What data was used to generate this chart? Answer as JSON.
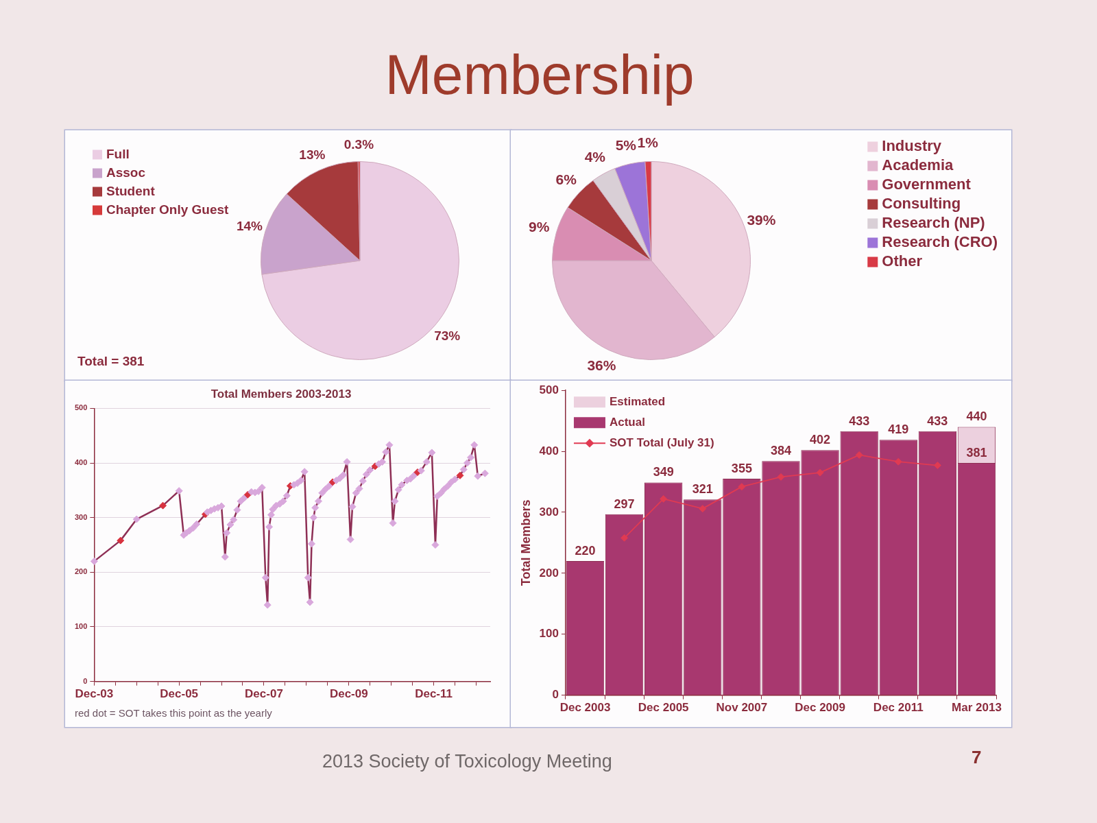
{
  "chart_data": [
    {
      "type": "pie",
      "title": "Membership",
      "categories": [
        "Full",
        "Assoc",
        "Student",
        "Chapter Only Guest"
      ],
      "values": [
        73,
        14,
        13,
        0.3
      ],
      "colors": [
        "#ebcde3",
        "#c9a3cc",
        "#a63a3c",
        "#d63a3a"
      ],
      "value_labels": [
        "73%",
        "14%",
        "13%",
        "0.3%"
      ],
      "legend": "top left",
      "annotations": [
        "Total = 381"
      ]
    },
    {
      "type": "pie",
      "categories": [
        "Industry",
        "Academia",
        "Government",
        "Consulting",
        "Research (NP)",
        "Research (CRO)",
        "Other"
      ],
      "values": [
        39,
        36,
        9,
        6,
        4,
        5,
        1
      ],
      "colors": [
        "#eed0de",
        "#e2b6cf",
        "#d98db2",
        "#a63a3c",
        "#d9cfd6",
        "#9c74d8",
        "#d83a46"
      ],
      "value_labels": [
        "39%",
        "36%",
        "9%",
        "6%",
        "4%",
        "5%",
        "1%"
      ],
      "legend": "top right"
    },
    {
      "type": "line",
      "title": "Total Members 2003-2013",
      "x": [
        "2003-12",
        "2004-07-15",
        "2004-12",
        "2005-07-15",
        "2005-12",
        "2006-01-10",
        "2006-02",
        "2006-03",
        "2006-04",
        "2006-05",
        "2006-07-15",
        "2006-08",
        "2006-09",
        "2006-10",
        "2006-11",
        "2006-12",
        "2007-01",
        "2007-01-15",
        "2007-02-15",
        "2007-03-15",
        "2007-04-15",
        "2007-05-15",
        "2007-06-15",
        "2007-07-15",
        "2007-08-15",
        "2007-09-15",
        "2007-10-15",
        "2007-11-15",
        "2007-12-15",
        "2008-01",
        "2008-01-15",
        "2008-02",
        "2008-02-15",
        "2008-03-15",
        "2008-04-15",
        "2008-05-15",
        "2008-06-15",
        "2008-07-15",
        "2008-08-15",
        "2008-09-15",
        "2008-10-15",
        "2008-11-15",
        "2008-12-15",
        "2009-01",
        "2009-01-15",
        "2009-02",
        "2009-02-15",
        "2009-03-15",
        "2009-04-15",
        "2009-05-15",
        "2009-06-15",
        "2009-07-15",
        "2009-08-15",
        "2009-09-15",
        "2009-10-15",
        "2009-11-15",
        "2009-12-15",
        "2010-01",
        "2010-02",
        "2010-03",
        "2010-04",
        "2010-05",
        "2010-06",
        "2010-07-15",
        "2010-08-15",
        "2010-09-15",
        "2010-10-15",
        "2010-11-15",
        "2010-12-15",
        "2011-01",
        "2011-02",
        "2011-03",
        "2011-04-15",
        "2011-05-15",
        "2011-06-15",
        "2011-07-15",
        "2011-08-15",
        "2011-10",
        "2011-11-15",
        "2011-12-15",
        "2012-01",
        "2012-02",
        "2012-03",
        "2012-04",
        "2012-05",
        "2012-06",
        "2012-07-15",
        "2012-08-15",
        "2012-09-15",
        "2012-10-15",
        "2012-11-15",
        "2012-12-15",
        "2013-02-15"
      ],
      "values": [
        220,
        258,
        297,
        322,
        349,
        268,
        272,
        276,
        281,
        288,
        306,
        310,
        313,
        316,
        318,
        321,
        228,
        272,
        287,
        296,
        314,
        330,
        336,
        342,
        347,
        346,
        348,
        355,
        190,
        140,
        283,
        305,
        315,
        322,
        325,
        330,
        340,
        358,
        360,
        363,
        368,
        384,
        190,
        145,
        252,
        300,
        318,
        330,
        345,
        352,
        358,
        365,
        368,
        372,
        378,
        402,
        260,
        320,
        345,
        353,
        367,
        379,
        387,
        394,
        398,
        402,
        420,
        433,
        290,
        330,
        351,
        360,
        368,
        371,
        377,
        383,
        386,
        402,
        419,
        250,
        339,
        345,
        352,
        358,
        365,
        370,
        377,
        388,
        400,
        410,
        433,
        376,
        381
      ],
      "color": "#8e2f55",
      "colors": [
        "#d9a8dc",
        "#d8323f",
        "#d9a8dc",
        "#d8323f",
        "#d9a8dc",
        "#d9a8dc",
        "#d9a8dc",
        "#d9a8dc",
        "#d9a8dc",
        "#d9a8dc",
        "#d8323f",
        "#d9a8dc",
        "#d9a8dc",
        "#d9a8dc",
        "#d9a8dc",
        "#d9a8dc",
        "#d9a8dc",
        "#d9a8dc",
        "#d9a8dc",
        "#d9a8dc",
        "#d9a8dc",
        "#d9a8dc",
        "#d9a8dc",
        "#d8323f",
        "#d9a8dc",
        "#d9a8dc",
        "#d9a8dc",
        "#d9a8dc",
        "#d9a8dc",
        "#d9a8dc",
        "#d9a8dc",
        "#d9a8dc",
        "#d9a8dc",
        "#d9a8dc",
        "#d9a8dc",
        "#d9a8dc",
        "#d9a8dc",
        "#d8323f",
        "#d9a8dc",
        "#d9a8dc",
        "#d9a8dc",
        "#d9a8dc",
        "#d9a8dc",
        "#d9a8dc",
        "#d9a8dc",
        "#d9a8dc",
        "#d9a8dc",
        "#d9a8dc",
        "#d9a8dc",
        "#d9a8dc",
        "#d9a8dc",
        "#d8323f",
        "#d9a8dc",
        "#d9a8dc",
        "#d9a8dc",
        "#d9a8dc",
        "#d9a8dc",
        "#d9a8dc",
        "#d9a8dc",
        "#d9a8dc",
        "#d9a8dc",
        "#d9a8dc",
        "#d9a8dc",
        "#d8323f",
        "#d9a8dc",
        "#d9a8dc",
        "#d9a8dc",
        "#d9a8dc",
        "#d9a8dc",
        "#d9a8dc",
        "#d9a8dc",
        "#d9a8dc",
        "#d9a8dc",
        "#d9a8dc",
        "#d9a8dc",
        "#d8323f",
        "#d9a8dc",
        "#d9a8dc",
        "#d9a8dc",
        "#d9a8dc",
        "#d9a8dc",
        "#d9a8dc",
        "#d9a8dc",
        "#d9a8dc",
        "#d9a8dc",
        "#d9a8dc",
        "#d8323f",
        "#d9a8dc",
        "#d9a8dc",
        "#d9a8dc",
        "#d9a8dc",
        "#d9a8dc",
        "#d9a8dc"
      ],
      "marker": "diamond",
      "xlim": [
        "2003-12",
        "2013-04"
      ],
      "xticks": [
        {
          "value": "2003-12",
          "label": "Dec-03"
        },
        {
          "value": "2004-06",
          "label": null
        },
        {
          "value": "2004-12",
          "label": null
        },
        {
          "value": "2005-06",
          "label": null
        },
        {
          "value": "2005-12",
          "label": "Dec-05"
        },
        {
          "value": "2006-06",
          "label": null
        },
        {
          "value": "2006-12",
          "label": null
        },
        {
          "value": "2007-06",
          "label": null
        },
        {
          "value": "2007-12",
          "label": "Dec-07"
        },
        {
          "value": "2008-06",
          "label": null
        },
        {
          "value": "2008-12",
          "label": null
        },
        {
          "value": "2009-06",
          "label": null
        },
        {
          "value": "2009-12",
          "label": "Dec-09"
        },
        {
          "value": "2010-06",
          "label": null
        },
        {
          "value": "2010-12",
          "label": null
        },
        {
          "value": "2011-06",
          "label": null
        },
        {
          "value": "2011-12",
          "label": "Dec-11"
        },
        {
          "value": "2012-06",
          "label": null
        },
        {
          "value": "2012-12",
          "label": null
        }
      ],
      "ylim": [
        0,
        500
      ],
      "yticks": [
        0,
        100,
        200,
        300,
        400,
        500
      ],
      "grid": "y",
      "annotations": [
        "red dot = SOT takes this point as the yearly"
      ]
    },
    {
      "type": "bar",
      "stacked": true,
      "ylabel": "Total Members",
      "categories": [
        "Dec 2003",
        null,
        "Dec 2005",
        null,
        "Nov 2007",
        null,
        "Dec 2009",
        null,
        "Dec 2011",
        null,
        "Mar 2013"
      ],
      "series": [
        {
          "name": "Actual",
          "color": "#a8386f",
          "values": [
            220,
            297,
            349,
            321,
            355,
            384,
            402,
            433,
            419,
            433,
            381
          ],
          "value_labels": [
            "220",
            "297",
            "349",
            "321",
            "355",
            "384",
            "402",
            "433",
            "419",
            "433",
            "381"
          ]
        },
        {
          "name": "Estimated",
          "color": "#ecd0de",
          "values": [
            null,
            null,
            null,
            null,
            null,
            null,
            null,
            null,
            null,
            null,
            59
          ]
        },
        {
          "name": "SOT Total (July 31)",
          "type": "line",
          "color": "#e03a52",
          "marker": "diamond",
          "values": [
            null,
            258,
            322,
            306,
            342,
            358,
            365,
            394,
            383,
            377,
            null
          ]
        }
      ],
      "totals": [
        null,
        null,
        null,
        null,
        null,
        null,
        null,
        null,
        null,
        null,
        "440"
      ],
      "ylim": [
        0,
        500
      ],
      "yticks": [
        0,
        100,
        200,
        300,
        400,
        500
      ],
      "legend": "top left",
      "annotations": [
        "2013 Society of Toxicology Meeting",
        "7"
      ]
    }
  ]
}
